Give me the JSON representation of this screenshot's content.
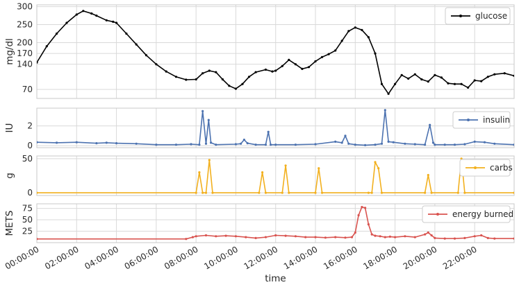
{
  "chart_data": [
    {
      "type": "line",
      "panel": "glucose",
      "ylabel": "mg/dl",
      "yticks": [
        70,
        140,
        170,
        200,
        250,
        300
      ],
      "ylim": [
        45,
        305
      ],
      "series": [
        {
          "name": "glucose",
          "color": "#000000",
          "x": [
            "00:00",
            "00:30",
            "01:00",
            "01:30",
            "02:00",
            "02:20",
            "02:45",
            "03:00",
            "03:30",
            "03:50",
            "04:00",
            "04:30",
            "05:00",
            "05:30",
            "06:00",
            "06:30",
            "07:00",
            "07:30",
            "08:00",
            "08:20",
            "08:40",
            "09:00",
            "09:20",
            "09:40",
            "10:00",
            "10:20",
            "10:40",
            "11:00",
            "11:30",
            "11:50",
            "12:00",
            "12:20",
            "12:40",
            "13:00",
            "13:20",
            "13:40",
            "14:00",
            "14:20",
            "14:40",
            "15:00",
            "15:20",
            "15:40",
            "16:00",
            "16:20",
            "16:40",
            "17:00",
            "17:20",
            "17:40",
            "18:00",
            "18:20",
            "18:40",
            "19:00",
            "19:20",
            "19:40",
            "20:00",
            "20:20",
            "20:40",
            "21:00",
            "21:20",
            "21:40",
            "22:00",
            "22:20",
            "22:40",
            "23:00",
            "23:30",
            "23:59"
          ],
          "values": [
            145,
            190,
            225,
            255,
            278,
            288,
            281,
            275,
            262,
            258,
            255,
            225,
            195,
            165,
            140,
            120,
            105,
            97,
            98,
            115,
            122,
            118,
            98,
            80,
            72,
            85,
            105,
            118,
            125,
            120,
            122,
            135,
            152,
            140,
            127,
            132,
            148,
            160,
            168,
            178,
            205,
            232,
            242,
            235,
            215,
            170,
            85,
            58,
            85,
            110,
            100,
            112,
            98,
            92,
            110,
            103,
            87,
            85,
            85,
            75,
            95,
            93,
            105,
            112,
            115,
            108
          ]
        }
      ]
    },
    {
      "type": "line",
      "panel": "insulin",
      "ylabel": "IU",
      "yticks": [
        0,
        2
      ],
      "ylim": [
        -0.2,
        3.8
      ],
      "series": [
        {
          "name": "insulin",
          "color": "#4c72b0",
          "x": [
            "00:00",
            "01:00",
            "02:00",
            "03:00",
            "03:30",
            "04:00",
            "05:00",
            "06:00",
            "07:00",
            "07:45",
            "08:10",
            "08:20",
            "08:30",
            "08:38",
            "08:45",
            "09:00",
            "10:00",
            "10:15",
            "10:25",
            "10:35",
            "11:00",
            "11:30",
            "11:38",
            "11:45",
            "12:00",
            "13:00",
            "14:00",
            "15:00",
            "15:20",
            "15:30",
            "15:40",
            "16:00",
            "16:30",
            "17:00",
            "17:20",
            "17:30",
            "17:40",
            "17:55",
            "18:30",
            "19:00",
            "19:30",
            "19:45",
            "19:55",
            "20:00",
            "20:30",
            "21:00",
            "21:30",
            "22:00",
            "22:30",
            "23:00",
            "23:59"
          ],
          "values": [
            0.35,
            0.3,
            0.35,
            0.25,
            0.3,
            0.25,
            0.2,
            0.1,
            0.1,
            0.15,
            0.1,
            3.5,
            0.2,
            2.6,
            0.3,
            0.1,
            0.15,
            0.2,
            0.6,
            0.25,
            0.1,
            0.1,
            1.4,
            0.1,
            0.1,
            0.1,
            0.15,
            0.4,
            0.3,
            1.0,
            0.2,
            0.1,
            0.05,
            0.1,
            0.2,
            3.6,
            0.4,
            0.35,
            0.2,
            0.15,
            0.1,
            2.1,
            0.3,
            0.1,
            0.1,
            0.1,
            0.15,
            0.4,
            0.35,
            0.2,
            0.1
          ]
        }
      ]
    },
    {
      "type": "line",
      "panel": "carbs",
      "ylabel": "g",
      "yticks": [
        0,
        50
      ],
      "ylim": [
        -4,
        54
      ],
      "series": [
        {
          "name": "carbs",
          "color": "#f2b01e",
          "x": [
            "00:00",
            "08:00",
            "08:10",
            "08:20",
            "08:30",
            "08:40",
            "08:50",
            "11:10",
            "11:20",
            "11:30",
            "12:20",
            "12:30",
            "12:40",
            "14:00",
            "14:10",
            "14:20",
            "16:40",
            "16:50",
            "17:00",
            "17:10",
            "17:20",
            "19:30",
            "19:40",
            "19:50",
            "21:10",
            "21:20",
            "21:30",
            "23:59"
          ],
          "values": [
            0,
            0,
            30,
            0,
            0,
            48,
            0,
            0,
            30,
            0,
            0,
            40,
            0,
            0,
            36,
            0,
            0,
            0,
            45,
            36,
            0,
            0,
            26,
            0,
            0,
            50,
            0,
            0
          ]
        }
      ]
    },
    {
      "type": "line",
      "panel": "energy",
      "ylabel": "METS",
      "yticks": [
        25,
        50,
        75
      ],
      "ylim": [
        0,
        85
      ],
      "xlabel": "time",
      "xticks": [
        "00:00:00",
        "02:00:00",
        "04:00:00",
        "06:00:00",
        "08:00:00",
        "10:00:00",
        "12:00:00",
        "14:00:00",
        "16:00:00",
        "18:00:00",
        "20:00:00",
        "22:00:00"
      ],
      "series": [
        {
          "name": "energy burned",
          "color": "#d9534f",
          "x": [
            "00:00",
            "07:30",
            "07:50",
            "08:00",
            "08:30",
            "09:00",
            "09:30",
            "10:00",
            "10:30",
            "11:00",
            "11:30",
            "12:00",
            "12:30",
            "13:00",
            "13:30",
            "14:00",
            "14:30",
            "15:00",
            "15:30",
            "15:50",
            "16:00",
            "16:10",
            "16:20",
            "16:30",
            "16:40",
            "16:50",
            "17:00",
            "17:15",
            "17:30",
            "17:45",
            "18:00",
            "18:30",
            "19:00",
            "19:30",
            "19:40",
            "19:50",
            "20:00",
            "20:30",
            "21:00",
            "21:30",
            "22:00",
            "22:20",
            "22:40",
            "23:00",
            "23:59"
          ],
          "values": [
            8,
            8,
            12,
            14,
            16,
            14,
            15,
            14,
            12,
            10,
            12,
            16,
            15,
            14,
            12,
            12,
            11,
            12,
            11,
            12,
            22,
            60,
            78,
            76,
            40,
            18,
            15,
            14,
            12,
            13,
            12,
            14,
            12,
            18,
            22,
            16,
            10,
            9,
            9,
            10,
            14,
            16,
            10,
            9,
            9
          ]
        }
      ]
    }
  ]
}
